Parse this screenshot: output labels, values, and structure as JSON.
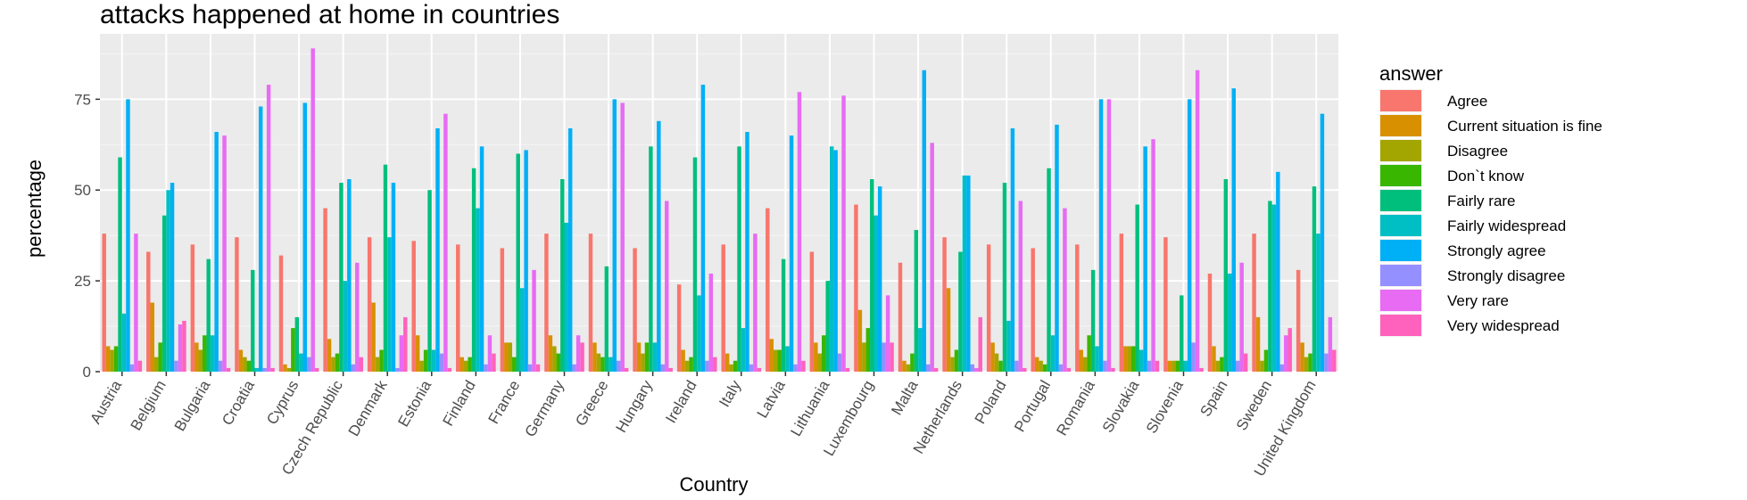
{
  "chart_data": {
    "type": "bar",
    "title": "attacks happened at home in countries",
    "xlabel": "Country",
    "ylabel": "percentage",
    "ylim": [
      0,
      93
    ],
    "yticks": [
      0,
      25,
      50,
      75
    ],
    "grid": true,
    "legend_position": "right",
    "legend_title": "answer",
    "categories": [
      "Austria",
      "Belgium",
      "Bulgaria",
      "Croatia",
      "Cyprus",
      "Czech Republic",
      "Denmark",
      "Estonia",
      "Finland",
      "France",
      "Germany",
      "Greece",
      "Hungary",
      "Ireland",
      "Italy",
      "Latvia",
      "Lithuania",
      "Luxembourg",
      "Malta",
      "Netherlands",
      "Poland",
      "Portugal",
      "Romania",
      "Slovakia",
      "Slovenia",
      "Spain",
      "Sweden",
      "United Kingdom"
    ],
    "series": [
      {
        "name": "Agree",
        "color": "#F8766D",
        "values": [
          38,
          33,
          35,
          37,
          32,
          45,
          37,
          36,
          35,
          34,
          38,
          38,
          34,
          24,
          35,
          45,
          33,
          46,
          30,
          37,
          35,
          34,
          35,
          38,
          37,
          27,
          38,
          28
        ]
      },
      {
        "name": "Current situation is fine",
        "color": "#D89000",
        "values": [
          7,
          19,
          8,
          6,
          2,
          9,
          19,
          10,
          4,
          8,
          10,
          8,
          8,
          6,
          5,
          9,
          8,
          17,
          3,
          23,
          8,
          4,
          6,
          7,
          3,
          7,
          15,
          8
        ]
      },
      {
        "name": "Disagree",
        "color": "#A3A500",
        "values": [
          6,
          4,
          6,
          4,
          1,
          4,
          4,
          3,
          3,
          8,
          7,
          5,
          5,
          3,
          2,
          6,
          5,
          8,
          2,
          4,
          5,
          3,
          4,
          7,
          3,
          3,
          3,
          4
        ]
      },
      {
        "name": "Don`t know",
        "color": "#39B600",
        "values": [
          7,
          8,
          10,
          3,
          12,
          5,
          6,
          6,
          4,
          4,
          5,
          4,
          8,
          4,
          3,
          6,
          10,
          12,
          5,
          6,
          3,
          2,
          10,
          7,
          3,
          4,
          6,
          5
        ]
      },
      {
        "name": "Fairly rare",
        "color": "#00BF7D",
        "values": [
          59,
          43,
          31,
          28,
          15,
          52,
          57,
          50,
          56,
          60,
          53,
          29,
          62,
          59,
          62,
          31,
          25,
          53,
          39,
          33,
          52,
          56,
          28,
          46,
          21,
          53,
          47,
          51
        ]
      },
      {
        "name": "Fairly widespread",
        "color": "#00BFC4",
        "values": [
          16,
          50,
          10,
          1,
          5,
          25,
          37,
          6,
          45,
          23,
          41,
          4,
          8,
          21,
          12,
          7,
          62,
          43,
          12,
          54,
          14,
          10,
          7,
          6,
          3,
          27,
          46,
          38
        ]
      },
      {
        "name": "Strongly agree",
        "color": "#00B0F6",
        "values": [
          75,
          52,
          66,
          73,
          74,
          53,
          52,
          67,
          62,
          61,
          67,
          75,
          69,
          79,
          66,
          65,
          61,
          51,
          83,
          54,
          67,
          68,
          75,
          62,
          75,
          78,
          55,
          71
        ]
      },
      {
        "name": "Strongly disagree",
        "color": "#9590FF",
        "values": [
          2,
          3,
          3,
          1,
          4,
          2,
          1,
          5,
          2,
          2,
          2,
          3,
          2,
          3,
          2,
          2,
          5,
          8,
          2,
          2,
          3,
          2,
          3,
          3,
          8,
          3,
          2,
          5
        ]
      },
      {
        "name": "Very rare",
        "color": "#E76BF3",
        "values": [
          38,
          13,
          65,
          79,
          89,
          30,
          10,
          71,
          10,
          28,
          10,
          74,
          47,
          27,
          38,
          77,
          76,
          21,
          63,
          1,
          47,
          45,
          75,
          64,
          83,
          30,
          10,
          15
        ]
      },
      {
        "name": "Very widespread",
        "color": "#FF62BC",
        "values": [
          3,
          14,
          1,
          1,
          1,
          4,
          15,
          1,
          5,
          2,
          8,
          1,
          1,
          4,
          1,
          3,
          1,
          8,
          1,
          15,
          1,
          1,
          1,
          3,
          1,
          5,
          12,
          6
        ]
      }
    ]
  }
}
